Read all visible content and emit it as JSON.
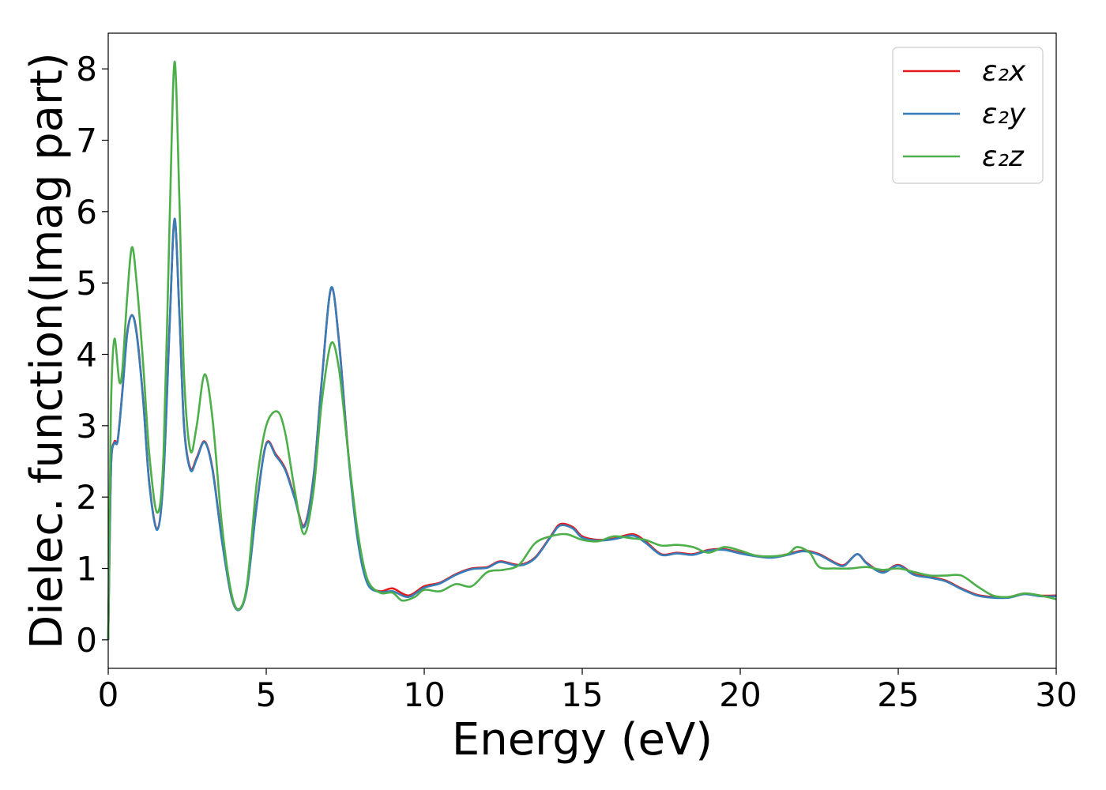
{
  "chart_data": {
    "type": "line",
    "xlabel": "Energy (eV)",
    "ylabel": "Dielec. function(Imag part)",
    "xlim": [
      0,
      30
    ],
    "ylim": [
      -0.4,
      8.5
    ],
    "xticks": [
      "0",
      "5",
      "10",
      "15",
      "20",
      "25",
      "30"
    ],
    "yticks": [
      "0",
      "1",
      "2",
      "3",
      "4",
      "5",
      "6",
      "7",
      "8"
    ],
    "grid": false,
    "legend_position": "top-right",
    "series": [
      {
        "name": "ε₂x",
        "color": "#e41a1c",
        "x": [
          0,
          0.05,
          0.1,
          0.2,
          0.3,
          0.45,
          0.6,
          0.75,
          0.9,
          1.1,
          1.3,
          1.55,
          1.75,
          1.95,
          2.1,
          2.25,
          2.4,
          2.6,
          2.8,
          3.05,
          3.3,
          3.6,
          3.9,
          4.15,
          4.4,
          4.7,
          5.0,
          5.3,
          5.6,
          5.9,
          6.2,
          6.5,
          6.75,
          7.05,
          7.3,
          7.6,
          7.9,
          8.2,
          8.6,
          9.0,
          9.5,
          10.0,
          10.5,
          11.0,
          11.5,
          12.0,
          12.4,
          13.0,
          13.5,
          14.0,
          14.3,
          14.7,
          15.0,
          15.5,
          16.0,
          16.6,
          17.0,
          17.5,
          18.0,
          18.5,
          19.0,
          19.5,
          20.0,
          20.5,
          21.0,
          21.5,
          22.0,
          22.5,
          23.0,
          23.3,
          23.7,
          24.0,
          24.5,
          25.0,
          25.5,
          26.0,
          26.5,
          27.0,
          27.5,
          28.0,
          28.5,
          29.0,
          29.5,
          30.0
        ],
        "y": [
          0.0,
          1.5,
          2.55,
          2.78,
          2.8,
          3.5,
          4.3,
          4.55,
          4.3,
          3.4,
          2.2,
          1.55,
          2.3,
          4.5,
          5.9,
          4.6,
          3.0,
          2.4,
          2.55,
          2.78,
          2.4,
          1.4,
          0.6,
          0.43,
          0.75,
          1.9,
          2.75,
          2.6,
          2.4,
          2.0,
          1.6,
          2.3,
          3.6,
          4.92,
          4.2,
          2.6,
          1.4,
          0.8,
          0.68,
          0.72,
          0.62,
          0.75,
          0.8,
          0.92,
          1.0,
          1.02,
          1.1,
          1.05,
          1.15,
          1.45,
          1.62,
          1.58,
          1.45,
          1.4,
          1.42,
          1.48,
          1.38,
          1.2,
          1.22,
          1.2,
          1.26,
          1.27,
          1.22,
          1.18,
          1.16,
          1.2,
          1.25,
          1.2,
          1.08,
          1.05,
          1.2,
          1.08,
          0.95,
          1.05,
          0.92,
          0.88,
          0.83,
          0.72,
          0.63,
          0.6,
          0.6,
          0.65,
          0.62,
          0.62
        ]
      },
      {
        "name": "ε₂y",
        "color": "#377eb8",
        "x": [
          0,
          0.05,
          0.1,
          0.2,
          0.3,
          0.45,
          0.6,
          0.75,
          0.9,
          1.1,
          1.3,
          1.55,
          1.75,
          1.95,
          2.1,
          2.25,
          2.4,
          2.6,
          2.8,
          3.05,
          3.3,
          3.6,
          3.9,
          4.15,
          4.4,
          4.7,
          5.0,
          5.3,
          5.6,
          5.9,
          6.2,
          6.5,
          6.75,
          7.05,
          7.3,
          7.6,
          7.9,
          8.2,
          8.6,
          9.0,
          9.5,
          10.0,
          10.5,
          11.0,
          11.5,
          12.0,
          12.4,
          13.0,
          13.5,
          14.0,
          14.3,
          14.7,
          15.0,
          15.5,
          16.0,
          16.6,
          17.0,
          17.5,
          18.0,
          18.5,
          19.0,
          19.5,
          20.0,
          20.5,
          21.0,
          21.5,
          22.0,
          22.5,
          23.0,
          23.3,
          23.7,
          24.0,
          24.5,
          25.0,
          25.5,
          26.0,
          26.5,
          27.0,
          27.5,
          28.0,
          28.5,
          29.0,
          29.5,
          30.0
        ],
        "y": [
          0.0,
          1.5,
          2.55,
          2.76,
          2.79,
          3.48,
          4.28,
          4.55,
          4.28,
          3.38,
          2.18,
          1.54,
          2.28,
          4.48,
          5.9,
          4.58,
          2.98,
          2.38,
          2.53,
          2.77,
          2.38,
          1.38,
          0.6,
          0.42,
          0.74,
          1.88,
          2.74,
          2.58,
          2.38,
          1.98,
          1.58,
          2.28,
          3.58,
          4.93,
          4.18,
          2.58,
          1.38,
          0.79,
          0.67,
          0.68,
          0.6,
          0.73,
          0.79,
          0.91,
          0.99,
          1.01,
          1.09,
          1.04,
          1.14,
          1.44,
          1.6,
          1.56,
          1.43,
          1.39,
          1.41,
          1.46,
          1.36,
          1.19,
          1.21,
          1.19,
          1.25,
          1.26,
          1.21,
          1.17,
          1.15,
          1.19,
          1.24,
          1.19,
          1.07,
          1.04,
          1.2,
          1.07,
          0.94,
          1.04,
          0.91,
          0.87,
          0.82,
          0.71,
          0.62,
          0.59,
          0.59,
          0.64,
          0.61,
          0.61
        ]
      },
      {
        "name": "ε₂z",
        "color": "#4daf4a",
        "x": [
          0,
          0.05,
          0.1,
          0.2,
          0.35,
          0.45,
          0.6,
          0.75,
          0.9,
          1.1,
          1.3,
          1.55,
          1.75,
          1.95,
          2.1,
          2.25,
          2.4,
          2.6,
          2.8,
          3.05,
          3.3,
          3.6,
          3.9,
          4.15,
          4.4,
          4.7,
          5.0,
          5.35,
          5.6,
          5.9,
          6.2,
          6.5,
          6.75,
          7.05,
          7.3,
          7.6,
          7.9,
          8.2,
          8.6,
          9.0,
          9.3,
          9.7,
          10.0,
          10.5,
          11.0,
          11.5,
          12.0,
          12.5,
          13.0,
          13.5,
          14.0,
          14.5,
          15.0,
          15.5,
          16.0,
          16.6,
          17.0,
          17.5,
          18.0,
          18.5,
          19.0,
          19.5,
          20.0,
          20.5,
          21.0,
          21.5,
          21.8,
          22.2,
          22.5,
          23.0,
          23.5,
          24.0,
          24.5,
          25.0,
          25.5,
          26.0,
          26.5,
          27.0,
          27.5,
          28.0,
          28.5,
          29.0,
          29.5,
          30.0
        ],
        "y": [
          0.0,
          2.0,
          3.5,
          4.22,
          3.62,
          3.8,
          4.8,
          5.5,
          5.0,
          3.9,
          2.6,
          1.78,
          2.6,
          6.0,
          8.1,
          6.2,
          3.7,
          2.65,
          3.0,
          3.72,
          3.1,
          1.6,
          0.65,
          0.43,
          0.8,
          2.2,
          3.0,
          3.2,
          2.9,
          2.1,
          1.48,
          2.1,
          3.3,
          4.15,
          3.8,
          2.6,
          1.5,
          0.85,
          0.66,
          0.66,
          0.55,
          0.6,
          0.7,
          0.68,
          0.78,
          0.75,
          0.95,
          0.98,
          1.05,
          1.35,
          1.45,
          1.48,
          1.4,
          1.38,
          1.45,
          1.42,
          1.4,
          1.32,
          1.33,
          1.3,
          1.22,
          1.3,
          1.25,
          1.18,
          1.17,
          1.2,
          1.3,
          1.22,
          1.02,
          1.0,
          1.0,
          1.02,
          0.98,
          1.0,
          0.95,
          0.9,
          0.9,
          0.9,
          0.75,
          0.62,
          0.6,
          0.65,
          0.62,
          0.57
        ]
      }
    ]
  }
}
